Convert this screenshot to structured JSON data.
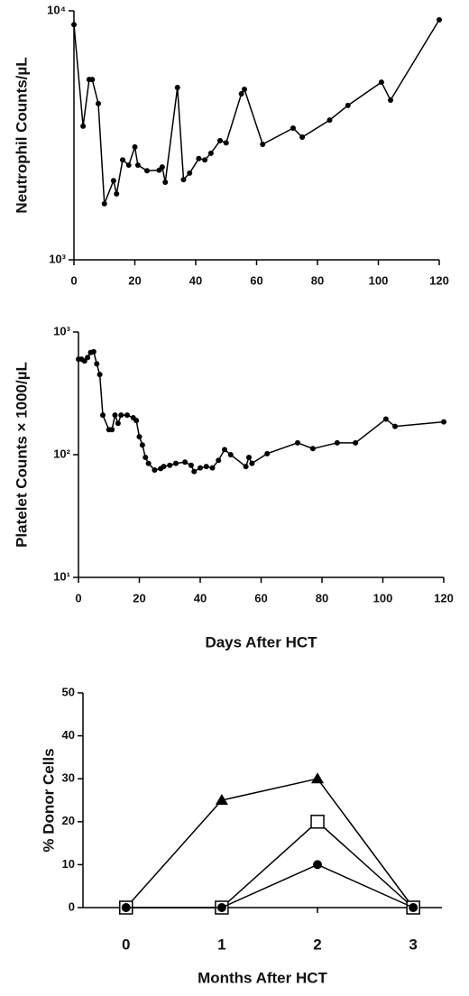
{
  "chart_data": [
    {
      "type": "line",
      "y_label": "Neutrophil Counts/µL",
      "log_scale": true,
      "color": "#000000",
      "x": [
        0,
        3,
        5,
        6,
        8,
        10,
        13,
        14,
        16,
        18,
        20,
        21,
        24,
        28,
        29,
        30,
        34,
        36,
        38,
        41,
        43,
        45,
        48,
        50,
        55,
        56,
        62,
        72,
        75,
        84,
        90,
        101,
        104,
        120
      ],
      "values": [
        8800,
        3440,
        5300,
        5300,
        4240,
        1680,
        2080,
        1840,
        2520,
        2400,
        2840,
        2400,
        2280,
        2290,
        2360,
        2050,
        4920,
        2100,
        2230,
        2550,
        2520,
        2680,
        3010,
        2950,
        4640,
        4840,
        2910,
        3380,
        3110,
        3640,
        4170,
        5170,
        4380,
        9200
      ],
      "xlim": [
        0,
        120
      ],
      "xticks": [
        0,
        20,
        40,
        60,
        80,
        100,
        120
      ],
      "ylim": [
        1000,
        10000
      ],
      "yticks": [
        {
          "value": 1000,
          "label": "10³"
        },
        {
          "value": 10000,
          "label": "10⁴"
        }
      ]
    },
    {
      "type": "line",
      "x_label": "Days After HCT",
      "y_label": "Platelet Counts × 1000/µL",
      "log_scale": true,
      "color": "#000000",
      "x": [
        0,
        1,
        2,
        3,
        4,
        5,
        6,
        7,
        8,
        10,
        11,
        12,
        13,
        14,
        16,
        18,
        19,
        20,
        21,
        22,
        23,
        25,
        27,
        28,
        30,
        32,
        35,
        37,
        38,
        40,
        42,
        44,
        46,
        48,
        50,
        55,
        56,
        57,
        62,
        72,
        77,
        85,
        91,
        101,
        104,
        120
      ],
      "values": [
        600,
        600,
        580,
        620,
        680,
        690,
        550,
        450,
        210,
        160,
        160,
        210,
        180,
        210,
        210,
        200,
        190,
        140,
        120,
        95,
        85,
        75,
        77,
        80,
        82,
        85,
        87,
        82,
        73,
        78,
        80,
        78,
        90,
        110,
        100,
        80,
        95,
        85,
        102,
        125,
        112,
        125,
        125,
        195,
        170,
        185
      ],
      "xlim": [
        0,
        120
      ],
      "xticks": [
        0,
        20,
        40,
        60,
        80,
        100,
        120
      ],
      "ylim": [
        10,
        1000
      ],
      "yticks": [
        {
          "value": 10,
          "label": "10¹"
        },
        {
          "value": 100,
          "label": "10²"
        },
        {
          "value": 1000,
          "label": "10³"
        }
      ]
    },
    {
      "type": "line",
      "x_label": "Months After HCT",
      "y_label": "% Donor Cells",
      "x": [
        0,
        1,
        2,
        3
      ],
      "xlim": [
        -0.45,
        3.3
      ],
      "xticks": [
        0,
        1,
        2,
        3
      ],
      "ylim": [
        0,
        50
      ],
      "yticks": [
        0,
        10,
        20,
        30,
        40,
        50
      ],
      "series": [
        {
          "color": "#000000",
          "marker": "triangle",
          "values": [
            0,
            25,
            30,
            0
          ]
        },
        {
          "color": "#000000",
          "marker": "square",
          "values": [
            0,
            0,
            20,
            0
          ]
        },
        {
          "color": "#000000",
          "marker": "circle",
          "values": [
            0,
            0,
            10,
            0
          ]
        }
      ]
    }
  ]
}
